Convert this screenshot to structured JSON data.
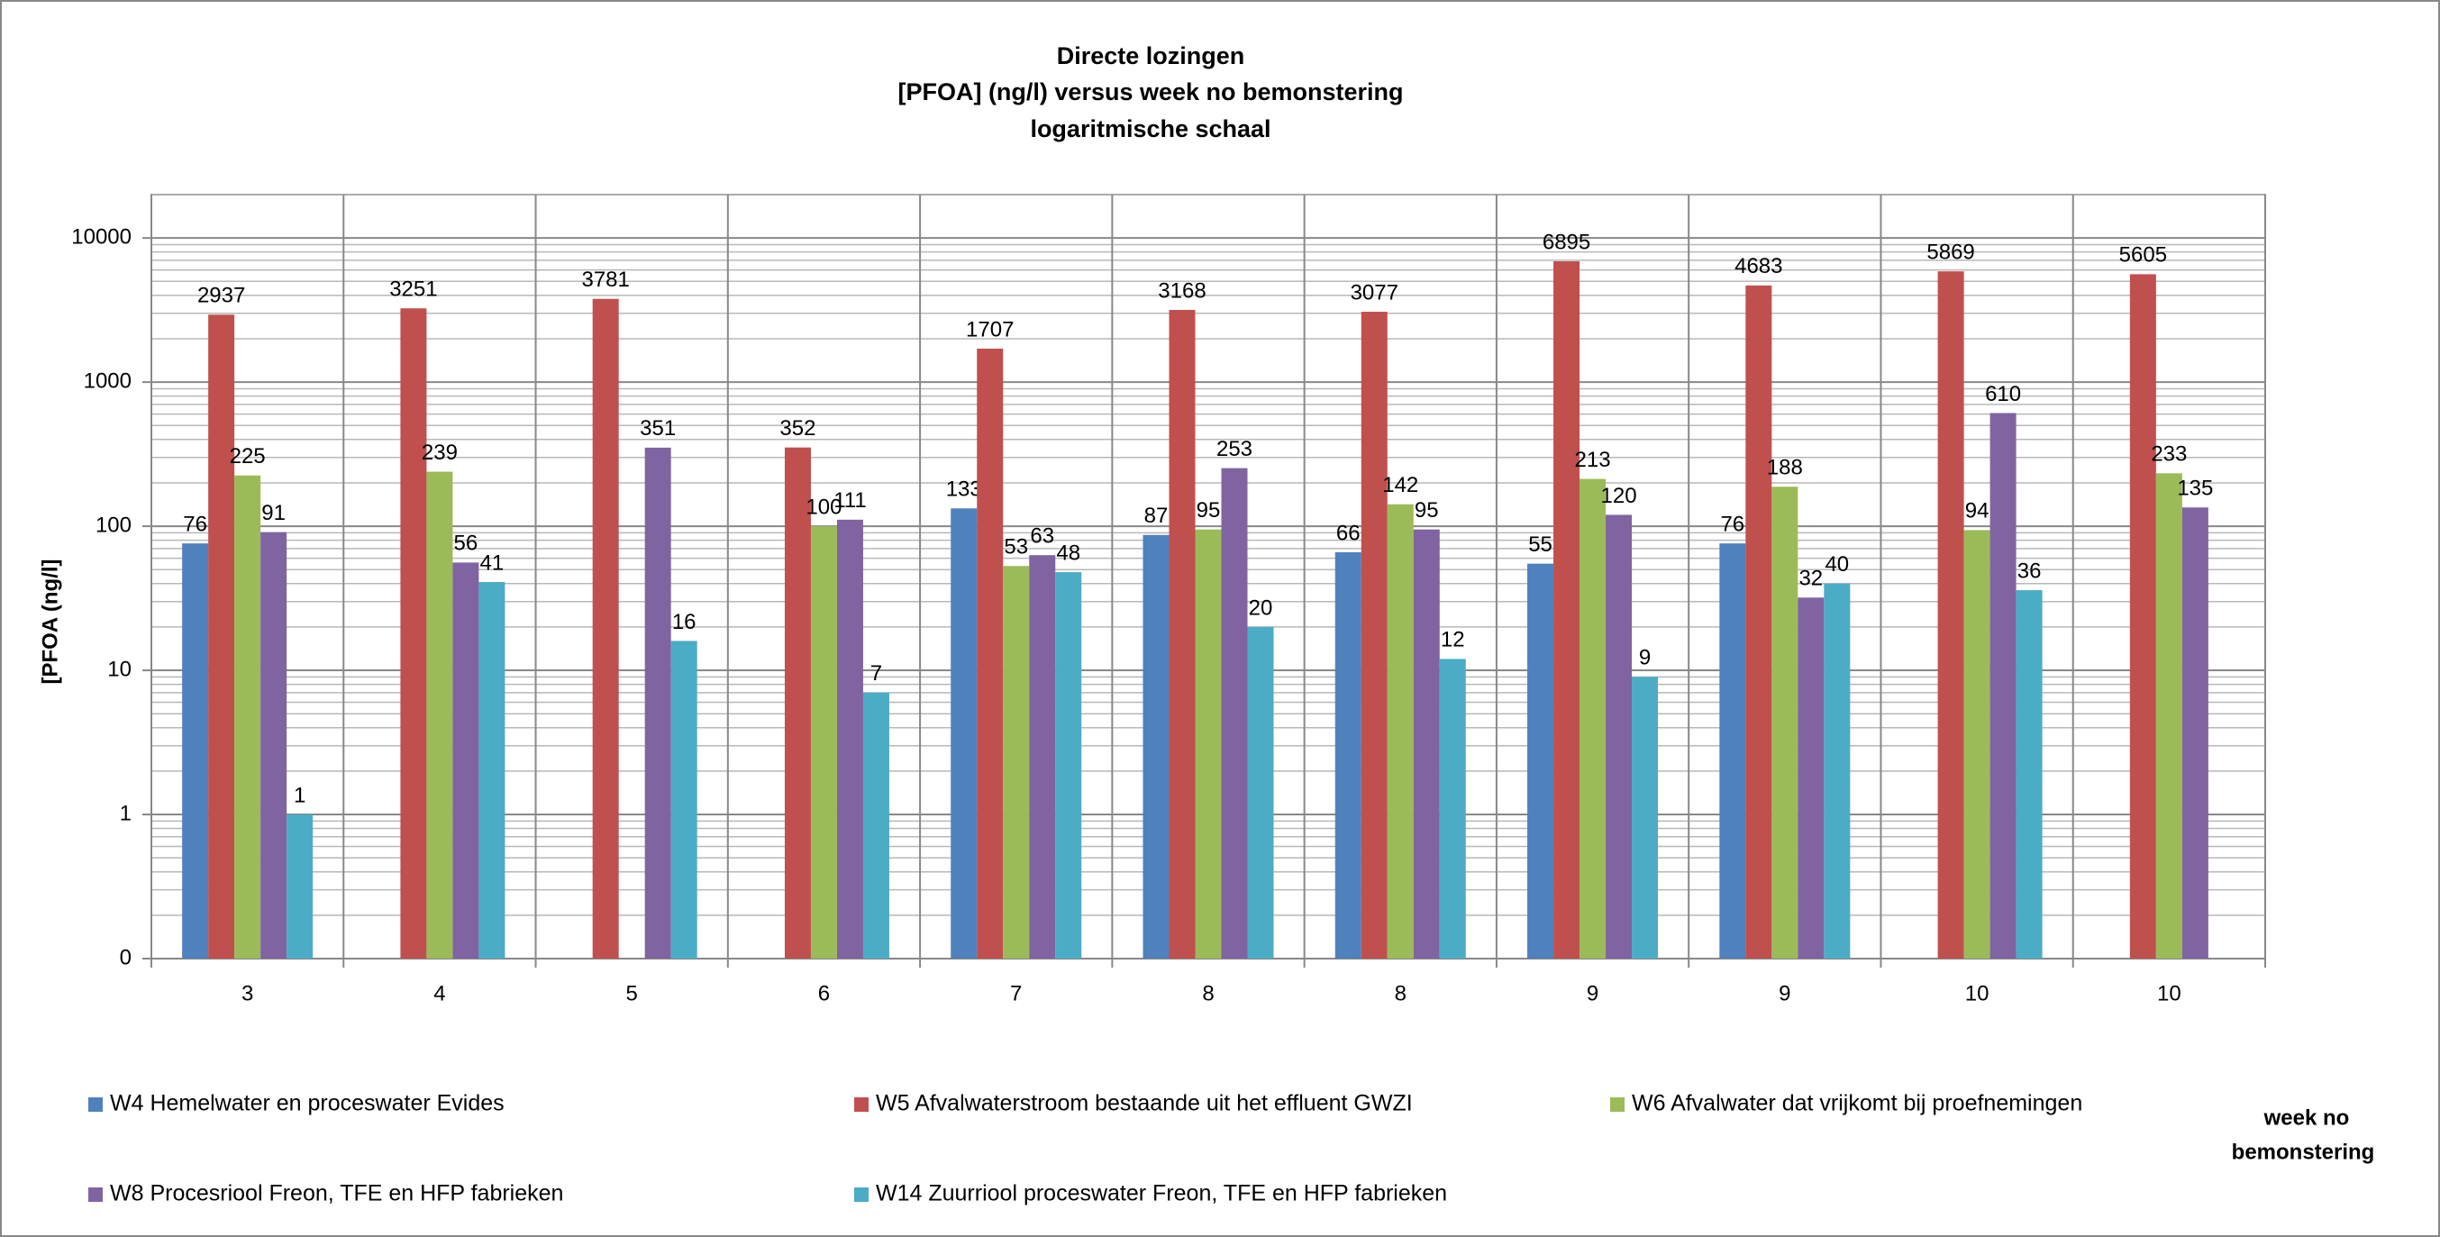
{
  "chart_data": {
    "type": "bar",
    "title": [
      "Directe lozingen",
      "[PFOA] (ng/l) versus week no bemonstering",
      "logaritmische schaal"
    ],
    "y_label": "[PFOA (ng/l]",
    "x_label": [
      "week no",
      "bemonstering"
    ],
    "categories": [
      "3",
      "4",
      "5",
      "6",
      "7",
      "8",
      "8",
      "9",
      "9",
      "10",
      "10"
    ],
    "series": [
      {
        "name": "W4 Hemelwater en proceswater Evides",
        "color": "#4f81bd",
        "values": [
          76,
          null,
          null,
          null,
          133,
          87,
          66,
          55,
          76,
          null,
          null
        ]
      },
      {
        "name": "W5 Afvalwaterstroom bestaande uit het effluent GWZI",
        "color": "#c0504d",
        "values": [
          2937,
          3251,
          3781,
          352,
          1707,
          3168,
          3077,
          6895,
          4683,
          5869,
          5605
        ]
      },
      {
        "name": "W6 Afvalwater dat vrijkomt bij proefnemingen",
        "color": "#9bbb59",
        "values": [
          225,
          239,
          null,
          100,
          53,
          95,
          142,
          213,
          188,
          94,
          233
        ]
      },
      {
        "name": "W8 Procesriool Freon, TFE en HFP fabrieken",
        "color": "#8064a2",
        "values": [
          91,
          56,
          351,
          111,
          63,
          253,
          95,
          120,
          32,
          610,
          135
        ]
      },
      {
        "name": "W14 Zuurriool proceswater Freon, TFE en HFP fabrieken",
        "color": "#4bacc6",
        "values": [
          1,
          41,
          16,
          7,
          48,
          20,
          12,
          9,
          40,
          36,
          null
        ]
      }
    ],
    "log_scale": true,
    "ylim": [
      0.1,
      20000
    ],
    "yticks": [
      {
        "value": 0.1,
        "label": "0"
      },
      1,
      10,
      100,
      1000,
      10000
    ],
    "grid": true,
    "minor_grid": true,
    "legend": "bottom"
  }
}
